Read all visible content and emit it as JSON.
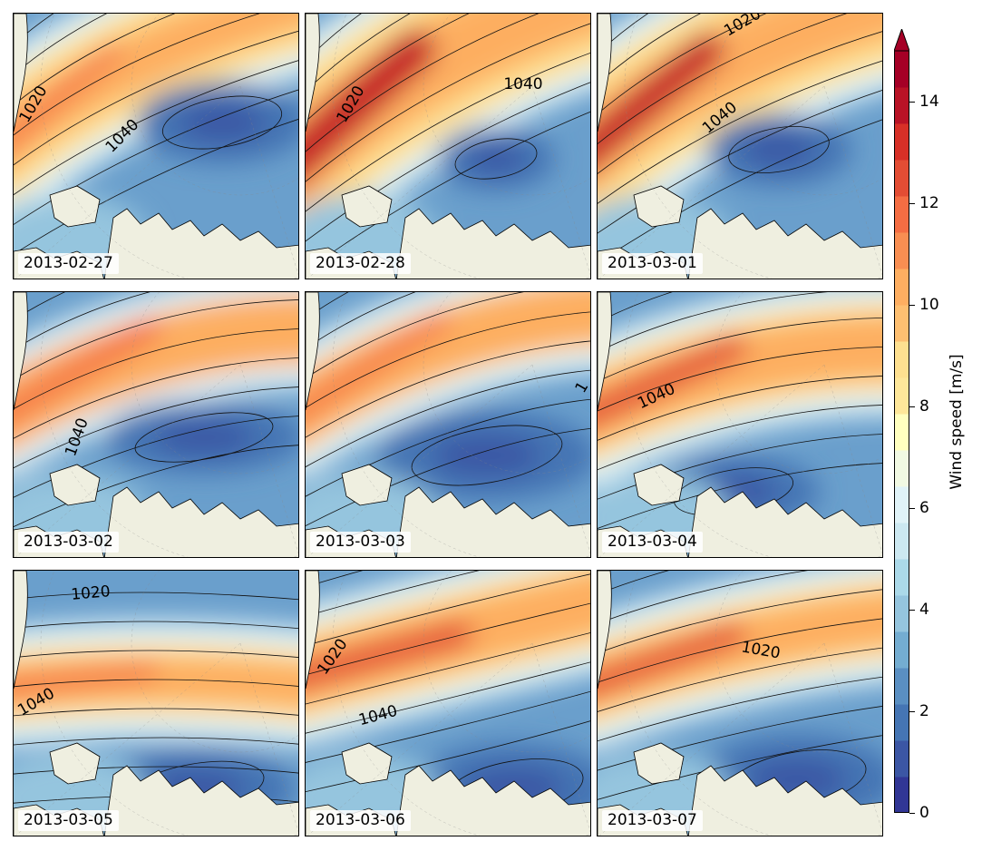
{
  "figure": {
    "panels": [
      {
        "date": "2013-02-27",
        "contour_labels": [
          "1020",
          "1040"
        ]
      },
      {
        "date": "2013-02-28",
        "contour_labels": [
          "1020",
          "1040"
        ]
      },
      {
        "date": "2013-03-01",
        "contour_labels": [
          "1020",
          "1040"
        ]
      },
      {
        "date": "2013-03-02",
        "contour_labels": [
          "1040"
        ]
      },
      {
        "date": "2013-03-03",
        "contour_labels": [
          "1"
        ]
      },
      {
        "date": "2013-03-04",
        "contour_labels": [
          "1040"
        ]
      },
      {
        "date": "2013-03-05",
        "contour_labels": [
          "1020",
          "1040"
        ]
      },
      {
        "date": "2013-03-06",
        "contour_labels": [
          "1020",
          "1040"
        ]
      },
      {
        "date": "2013-03-07",
        "contour_labels": [
          "1020"
        ]
      }
    ],
    "colorbar": {
      "label": "Wind speed [m/s]",
      "ticks": [
        "0",
        "2",
        "4",
        "6",
        "8",
        "10",
        "12",
        "14"
      ],
      "range": [
        0,
        15
      ],
      "extend": "max",
      "colormap": "RdYlBu_r",
      "colors": [
        "#313695",
        "#3b56a4",
        "#4575b4",
        "#5a8fc2",
        "#74add1",
        "#95c5de",
        "#abd9e9",
        "#cce8f1",
        "#e0f3f8",
        "#f1f9e3",
        "#ffffbf",
        "#fee79a",
        "#fee090",
        "#fdbf71",
        "#fdae61",
        "#f88e52",
        "#f46d43",
        "#e34d34",
        "#d73027",
        "#b91326",
        "#a50026"
      ]
    }
  }
}
